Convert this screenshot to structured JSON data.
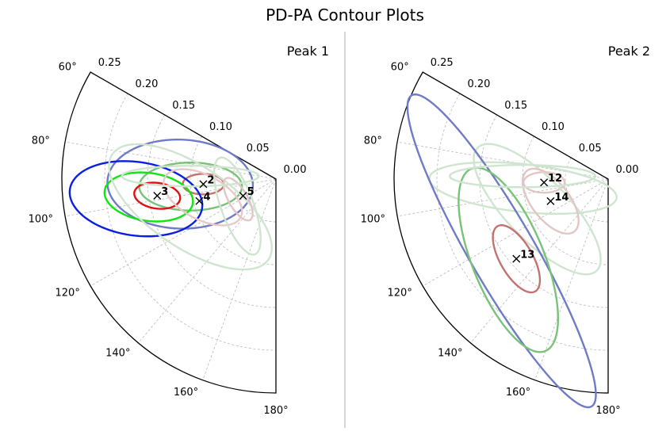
{
  "figure_title": "PD-PA Contour Plots",
  "chart_data": [
    {
      "type": "polar-contour",
      "title": "Peak 1",
      "theta_range_deg": [
        60,
        180
      ],
      "r_range": [
        0,
        0.25
      ],
      "theta_ticks": [
        "60°",
        "80°",
        "100°",
        "120°",
        "140°",
        "160°",
        "180°"
      ],
      "r_ticks": [
        "0.00",
        "0.05",
        "0.10",
        "0.15",
        "0.20",
        "0.25"
      ],
      "grid": true,
      "contours": [
        {
          "color": "#6f7bc6",
          "theta_deg": 93,
          "r": 0.112,
          "a": 0.085,
          "b": 0.052,
          "phi_deg": 2
        },
        {
          "color": "#79c279",
          "theta_deg": 95,
          "r": 0.1,
          "a": 0.06,
          "b": 0.028,
          "phi_deg": 0
        },
        {
          "color": "#c37272",
          "theta_deg": 94,
          "r": 0.085,
          "a": 0.024,
          "b": 0.012,
          "phi_deg": 0
        },
        {
          "color": "#0a1fe0",
          "theta_deg": 98,
          "r": 0.165,
          "a": 0.078,
          "b": 0.043,
          "phi_deg": 8
        },
        {
          "color": "#12e412",
          "theta_deg": 98,
          "r": 0.15,
          "a": 0.052,
          "b": 0.028,
          "phi_deg": 8
        },
        {
          "color": "#e01010",
          "theta_deg": 98,
          "r": 0.14,
          "a": 0.027,
          "b": 0.015,
          "phi_deg": 8
        },
        {
          "color": "#e8c8c8",
          "theta_deg": 104,
          "r": 0.088,
          "a": 0.05,
          "b": 0.026,
          "phi_deg": 28
        },
        {
          "color": "#cfe5cf",
          "theta_deg": 108,
          "r": 0.105,
          "a": 0.11,
          "b": 0.048,
          "phi_deg": 34
        },
        {
          "color": "#e2c6c6",
          "theta_deg": 118,
          "r": 0.05,
          "a": 0.028,
          "b": 0.011,
          "phi_deg": 60
        },
        {
          "color": "#cfe5cf",
          "theta_deg": 125,
          "r": 0.055,
          "a": 0.06,
          "b": 0.019,
          "phi_deg": 70
        },
        {
          "color": "#cfe5cf",
          "theta_deg": 88,
          "r": 0.1,
          "a": 0.08,
          "b": 0.012,
          "phi_deg": 0
        }
      ],
      "points": [
        {
          "label": "2",
          "theta_deg": 94,
          "r": 0.085
        },
        {
          "label": "3",
          "theta_deg": 98,
          "r": 0.14
        },
        {
          "label": "4",
          "theta_deg": 106,
          "r": 0.093
        },
        {
          "label": "5",
          "theta_deg": 117,
          "r": 0.043
        }
      ]
    },
    {
      "type": "polar-contour",
      "title": "Peak 2",
      "theta_range_deg": [
        60,
        180
      ],
      "r_range": [
        0,
        0.25
      ],
      "theta_ticks": [
        "60°",
        "80°",
        "100°",
        "120°",
        "140°",
        "160°",
        "180°"
      ],
      "r_ticks": [
        "0.00",
        "0.05",
        "0.10",
        "0.15",
        "0.20",
        "0.25"
      ],
      "grid": true,
      "contours": [
        {
          "color": "#cfe5cf",
          "theta_deg": 96,
          "r": 0.1,
          "a": 0.11,
          "b": 0.028,
          "phi_deg": 6
        },
        {
          "color": "#e2c6c6",
          "theta_deg": 93,
          "r": 0.075,
          "a": 0.024,
          "b": 0.012,
          "phi_deg": 0
        },
        {
          "color": "#cfe5cf",
          "theta_deg": 113,
          "r": 0.09,
          "a": 0.1,
          "b": 0.036,
          "phi_deg": 46
        },
        {
          "color": "#e2c6c6",
          "theta_deg": 111,
          "r": 0.072,
          "a": 0.045,
          "b": 0.022,
          "phi_deg": 52
        },
        {
          "color": "#6f7bc6",
          "theta_deg": 124,
          "r": 0.15,
          "a": 0.21,
          "b": 0.038,
          "phi_deg": 60
        },
        {
          "color": "#79c279",
          "theta_deg": 129,
          "r": 0.15,
          "a": 0.115,
          "b": 0.042,
          "phi_deg": 68
        },
        {
          "color": "#c37272",
          "theta_deg": 131,
          "r": 0.142,
          "a": 0.044,
          "b": 0.019,
          "phi_deg": 60
        },
        {
          "color": "#cfe5cf",
          "theta_deg": 88,
          "r": 0.1,
          "a": 0.085,
          "b": 0.013,
          "phi_deg": 0
        }
      ],
      "points": [
        {
          "label": "12",
          "theta_deg": 93,
          "r": 0.075
        },
        {
          "label": "13",
          "theta_deg": 131,
          "r": 0.142
        },
        {
          "label": "14",
          "theta_deg": 111,
          "r": 0.072
        }
      ]
    }
  ]
}
